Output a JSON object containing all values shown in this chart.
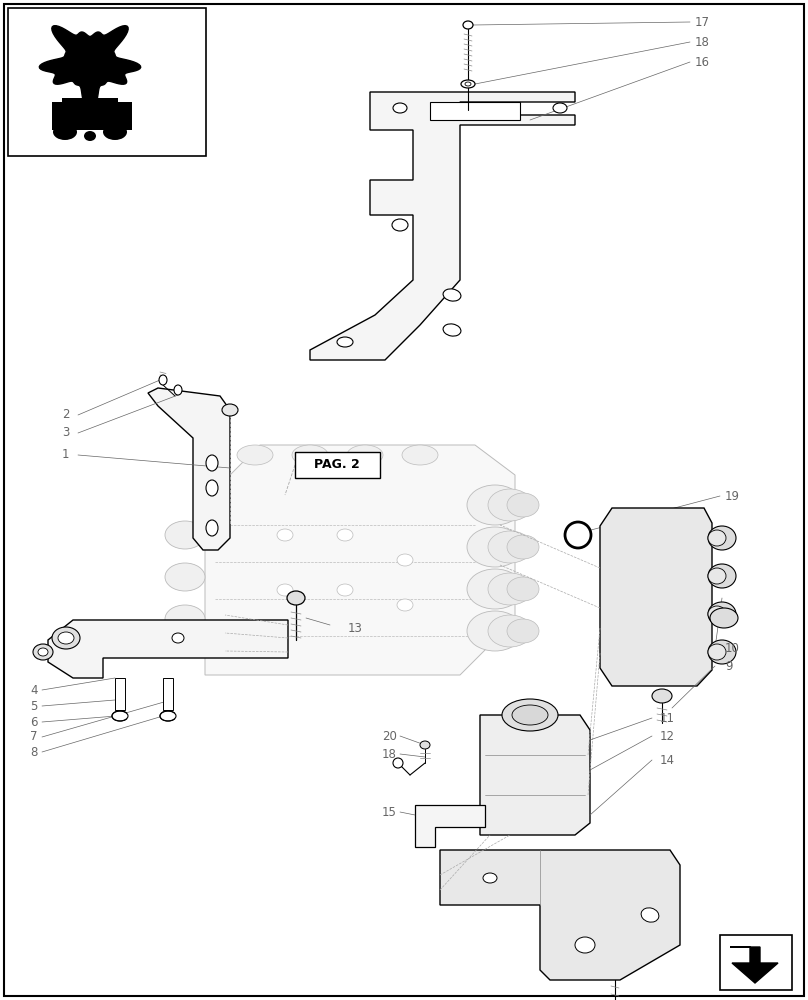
{
  "bg_color": "#ffffff",
  "line_color": "#000000",
  "gray_line": "#888888",
  "light_gray": "#cccccc",
  "label_color": "#666666",
  "dashed_color": "#aaaaaa",
  "fig_width": 8.08,
  "fig_height": 10.0,
  "border_lw": 1.2,
  "part_lw": 1.0,
  "label_fontsize": 8.5,
  "bracket_fill": "#f5f5f5",
  "valve_fill": "#eeeeee",
  "valve_outline": "#bbbbbb"
}
